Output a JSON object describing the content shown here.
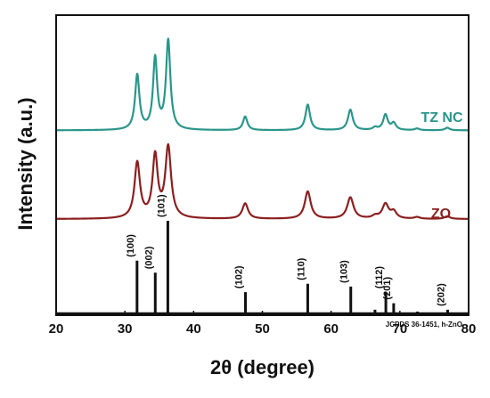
{
  "chart_data": {
    "type": "line",
    "xlabel": "2θ (degree)",
    "ylabel": "Intensity (a.u.)",
    "xlim": [
      20,
      80
    ],
    "xticks": [
      "20",
      "30",
      "40",
      "50",
      "60",
      "70",
      "80"
    ],
    "y_tick_labels": false,
    "grid": false,
    "series": [
      {
        "name": "TZ NC",
        "color": "#2a968a",
        "baseline": 0.6,
        "peaks": [
          {
            "x": 31.8,
            "y": 64,
            "w": 0.38
          },
          {
            "x": 34.4,
            "y": 83,
            "w": 0.36
          },
          {
            "x": 36.3,
            "y": 104,
            "w": 0.38
          },
          {
            "x": 47.5,
            "y": 16,
            "w": 0.38
          },
          {
            "x": 56.6,
            "y": 30,
            "w": 0.4
          },
          {
            "x": 62.8,
            "y": 24,
            "w": 0.42
          },
          {
            "x": 66.4,
            "y": 3,
            "w": 0.4
          },
          {
            "x": 67.9,
            "y": 18,
            "w": 0.4
          },
          {
            "x": 69.1,
            "y": 8,
            "w": 0.4
          },
          {
            "x": 72.5,
            "y": 2,
            "w": 0.4
          },
          {
            "x": 76.9,
            "y": 3,
            "w": 0.4
          }
        ]
      },
      {
        "name": "ZO",
        "color": "#8c1f1f",
        "baseline": 1.0,
        "peaks": [
          {
            "x": 31.8,
            "y": 65,
            "w": 0.48
          },
          {
            "x": 34.4,
            "y": 72,
            "w": 0.45
          },
          {
            "x": 36.3,
            "y": 83,
            "w": 0.5
          },
          {
            "x": 47.5,
            "y": 18,
            "w": 0.5
          },
          {
            "x": 56.6,
            "y": 32,
            "w": 0.52
          },
          {
            "x": 62.8,
            "y": 25,
            "w": 0.55
          },
          {
            "x": 66.4,
            "y": 3,
            "w": 0.5
          },
          {
            "x": 67.9,
            "y": 17,
            "w": 0.55
          },
          {
            "x": 69.1,
            "y": 8,
            "w": 0.5
          },
          {
            "x": 72.5,
            "y": 2,
            "w": 0.5
          },
          {
            "x": 76.9,
            "y": 3,
            "w": 0.5
          }
        ]
      }
    ],
    "reference": {
      "name": "JCPDS 36-1451, h-ZnO",
      "lines": [
        {
          "x": 31.77,
          "y": 57,
          "hkl": "(100)"
        },
        {
          "x": 34.42,
          "y": 44,
          "hkl": "(002)"
        },
        {
          "x": 36.25,
          "y": 100,
          "hkl": "(101)"
        },
        {
          "x": 47.54,
          "y": 23,
          "hkl": "(102)"
        },
        {
          "x": 56.6,
          "y": 32,
          "hkl": "(110)"
        },
        {
          "x": 62.86,
          "y": 29,
          "hkl": "(103)"
        },
        {
          "x": 66.38,
          "y": 4,
          "hkl": ""
        },
        {
          "x": 67.96,
          "y": 23,
          "hkl": "(112)"
        },
        {
          "x": 69.1,
          "y": 11,
          "hkl": "(201)"
        },
        {
          "x": 72.56,
          "y": 2,
          "hkl": ""
        },
        {
          "x": 76.95,
          "y": 4,
          "hkl": "(202)"
        }
      ]
    }
  }
}
